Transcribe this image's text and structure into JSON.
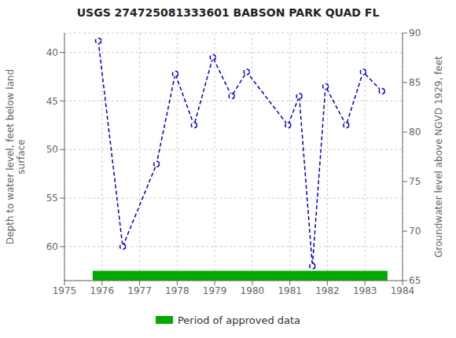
{
  "chart_data": {
    "type": "line",
    "title": "USGS 274725081333601 BABSON PARK QUAD FL",
    "x": [
      1975.9,
      1976.55,
      1977.45,
      1977.95,
      1978.45,
      1978.95,
      1979.45,
      1979.85,
      1980.95,
      1981.25,
      1981.6,
      1981.95,
      1982.5,
      1982.95,
      1983.45
    ],
    "xlim": [
      1975,
      1984
    ],
    "xticks": [
      1975,
      1976,
      1977,
      1978,
      1979,
      1980,
      1981,
      1982,
      1983,
      1984
    ],
    "ylim": [
      63.5,
      38.0
    ],
    "yticks": [
      40,
      45,
      50,
      55,
      60
    ],
    "ylabel": "Depth to water level, feet below land\nsurface",
    "y2lim": [
      65,
      90
    ],
    "y2ticks": [
      65,
      70,
      75,
      80,
      85,
      90
    ],
    "y2label": "Groundwater level above NGVD 1929, feet",
    "grid": true,
    "series": [
      {
        "type": "line",
        "values": [
          38.8,
          60.0,
          51.5,
          42.2,
          47.5,
          40.5,
          44.5,
          42.0,
          47.5,
          44.5,
          62.0,
          43.5,
          47.5,
          42.0,
          44.0
        ],
        "color": "#0000CC",
        "line_style": "dashed",
        "marker": "circle"
      },
      {
        "type": "span",
        "name": "Period of approved data",
        "x": [
          1975.75,
          1983.6
        ],
        "color": "#00AA00"
      }
    ]
  }
}
